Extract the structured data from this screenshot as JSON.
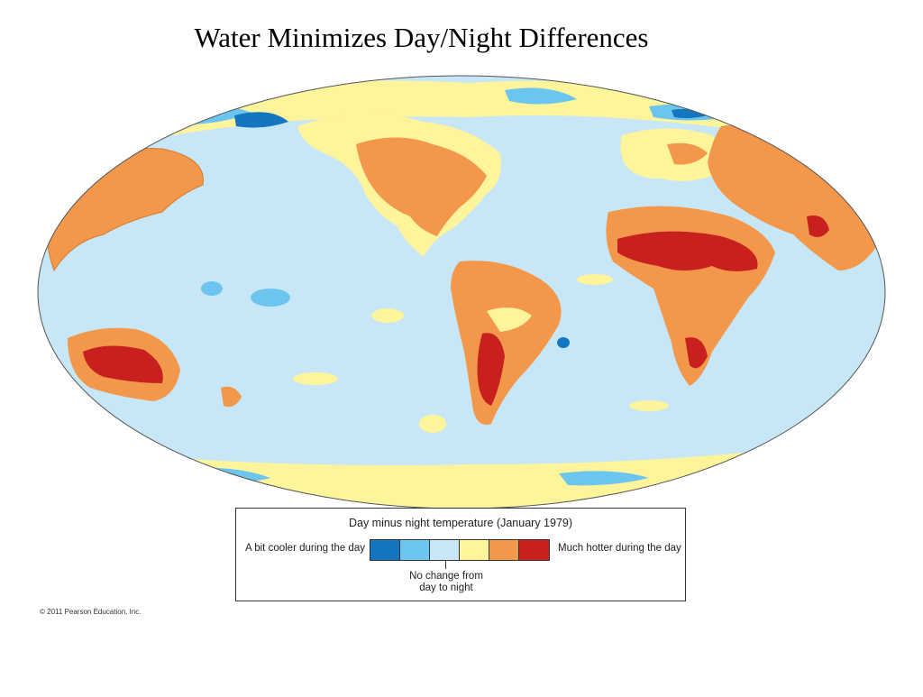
{
  "title": "Water Minimizes Day/Night Differences",
  "map": {
    "projection": "world map, Robinson-like oval",
    "colors": {
      "ocean_base": "#c7e7f6",
      "much_cooler": "#1476c0",
      "bit_cooler": "#6cc5ef",
      "no_change": "#c7e7f6",
      "slightly_hotter": "#fdf49b",
      "hotter": "#f3974a",
      "much_hotter": "#c8201f"
    }
  },
  "legend": {
    "title": "Day minus night temperature (January 1979)",
    "left_label": "A bit cooler during the day",
    "right_label": "Much hotter during the day",
    "center_label_line1": "No change from",
    "center_label_line2": "day to night",
    "swatches": [
      "#1476c0",
      "#6cc5ef",
      "#c7e7f6",
      "#fdf49b",
      "#f3974a",
      "#c8201f"
    ]
  },
  "credit": "© 2011 Pearson Education, Inc."
}
